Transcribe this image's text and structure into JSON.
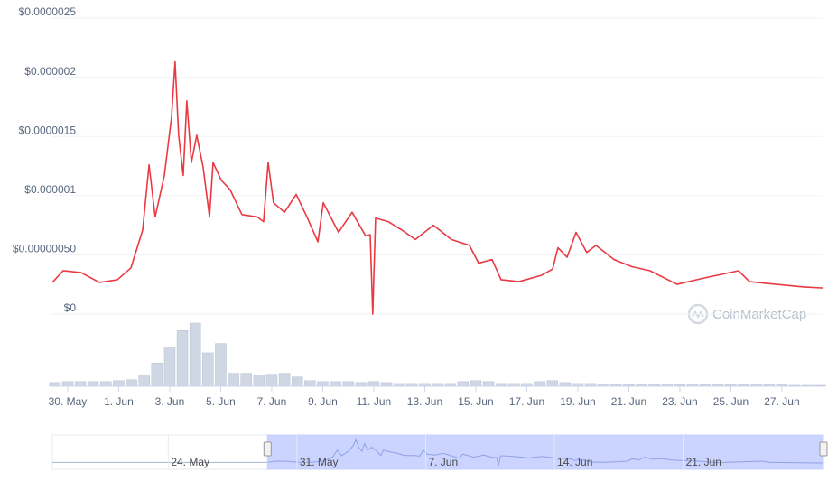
{
  "chart_data": {
    "type": "line",
    "color": "#ea3943",
    "grid": true,
    "xlim": [
      -0.6,
      29.63
    ],
    "ylim": [
      0,
      2.5e-06
    ],
    "yticks": [
      {
        "value": 0,
        "label": "$0"
      },
      {
        "value": 5e-07,
        "label": "$0.00000050"
      },
      {
        "value": 1e-06,
        "label": "$0.000001"
      },
      {
        "value": 1.5e-06,
        "label": "$0.0000015"
      },
      {
        "value": 2e-06,
        "label": "$0.000002"
      },
      {
        "value": 2.5e-06,
        "label": "$0.0000025"
      }
    ],
    "xticks": [
      {
        "value": 0,
        "label": "30. May"
      },
      {
        "value": 2,
        "label": "1. Jun"
      },
      {
        "value": 4,
        "label": "3. Jun"
      },
      {
        "value": 6,
        "label": "5. Jun"
      },
      {
        "value": 8,
        "label": "7. Jun"
      },
      {
        "value": 10,
        "label": "9. Jun"
      },
      {
        "value": 12,
        "label": "11. Jun"
      },
      {
        "value": 14,
        "label": "13. Jun"
      },
      {
        "value": 16,
        "label": "15. Jun"
      },
      {
        "value": 18,
        "label": "17. Jun"
      },
      {
        "value": 20,
        "label": "19. Jun"
      },
      {
        "value": 22,
        "label": "21. Jun"
      },
      {
        "value": 24,
        "label": "23. Jun"
      },
      {
        "value": 26,
        "label": "25. Jun"
      },
      {
        "value": 28,
        "label": "27. Jun"
      }
    ],
    "x": [
      -0.6,
      -0.18,
      0.53,
      1.24,
      1.95,
      2.48,
      2.94,
      3.19,
      3.43,
      3.79,
      4.07,
      4.21,
      4.35,
      4.53,
      4.67,
      4.85,
      5.06,
      5.31,
      5.56,
      5.7,
      6.02,
      6.37,
      6.83,
      7.43,
      7.68,
      7.86,
      8.07,
      8.5,
      8.96,
      9.38,
      9.81,
      10.02,
      10.62,
      11.15,
      11.68,
      11.86,
      11.96,
      12.07,
      12.57,
      13.1,
      13.63,
      14.34,
      15.04,
      15.75,
      16.11,
      16.64,
      16.99,
      17.7,
      18.58,
      19.01,
      19.22,
      19.58,
      19.93,
      20.35,
      20.71,
      21.42,
      22.12,
      22.83,
      23.89,
      24.96,
      26.3,
      26.73,
      27.79,
      28.85,
      29.63
    ],
    "values": [
      2.67e-07,
      3.66e-07,
      3.5e-07,
      2.67e-07,
      2.9e-07,
      3.9e-07,
      7.1e-07,
      1.26e-06,
      8.2e-07,
      1.17e-06,
      1.66e-06,
      2.13e-06,
      1.51e-06,
      1.17e-06,
      1.8e-06,
      1.28e-06,
      1.51e-06,
      1.24e-06,
      8.2e-07,
      1.28e-06,
      1.13e-06,
      1.05e-06,
      8.4e-07,
      8.2e-07,
      7.8e-07,
      1.28e-06,
      9.4e-07,
      8.6e-07,
      1.01e-06,
      8.2e-07,
      6.1e-07,
      9.4e-07,
      6.9e-07,
      8.6e-07,
      6.6e-07,
      6.7e-07,
      0,
      8.1e-07,
      7.8e-07,
      7.1e-07,
      6.3e-07,
      7.5e-07,
      6.3e-07,
      5.8e-07,
      4.3e-07,
      4.6e-07,
      2.9e-07,
      2.74e-07,
      3.28e-07,
      3.8e-07,
      5.6e-07,
      4.8e-07,
      6.9e-07,
      5.2e-07,
      5.8e-07,
      4.6e-07,
      4e-07,
      3.66e-07,
      2.51e-07,
      3.05e-07,
      3.66e-07,
      2.74e-07,
      2.51e-07,
      2.29e-07,
      2.2e-07
    ],
    "volume": {
      "color": "#cfd6e4",
      "x": [
        -0.5,
        0,
        0.5,
        1,
        1.5,
        2,
        2.5,
        3,
        3.5,
        4,
        4.5,
        5,
        5.5,
        6,
        6.5,
        7,
        7.5,
        8,
        8.5,
        9,
        9.5,
        10,
        10.5,
        11,
        11.5,
        12,
        12.5,
        13,
        13.5,
        14,
        14.5,
        15,
        15.5,
        16,
        16.5,
        17,
        17.5,
        18,
        18.5,
        19,
        19.5,
        20,
        20.5,
        21,
        21.5,
        22,
        22.5,
        23,
        23.5,
        24,
        24.5,
        25,
        25.5,
        26,
        26.5,
        27,
        27.5,
        28,
        28.5,
        29,
        29.5
      ],
      "values": [
        4,
        5,
        5,
        5,
        5,
        6,
        7,
        12,
        25,
        42,
        60,
        68,
        36,
        46,
        14,
        14,
        12,
        13,
        14,
        10,
        6,
        5,
        5,
        5,
        4,
        5,
        4,
        3,
        3,
        3,
        3,
        3,
        5,
        6,
        5,
        3,
        3,
        3,
        5,
        6,
        4,
        3,
        3,
        2,
        2,
        2,
        2,
        2,
        2,
        2,
        2,
        2,
        2,
        2,
        2,
        2,
        2,
        2,
        1,
        1,
        1
      ]
    },
    "navigator": {
      "xlim": [
        -12.3,
        29.63
      ],
      "xticks": [
        {
          "value": -6,
          "label": "24. May"
        },
        {
          "value": 1,
          "label": "31. May"
        },
        {
          "value": 8,
          "label": "7. Jun"
        },
        {
          "value": 15,
          "label": "14. Jun"
        },
        {
          "value": 22,
          "label": "21. Jun"
        }
      ]
    },
    "watermark": "CoinMarketCap"
  }
}
